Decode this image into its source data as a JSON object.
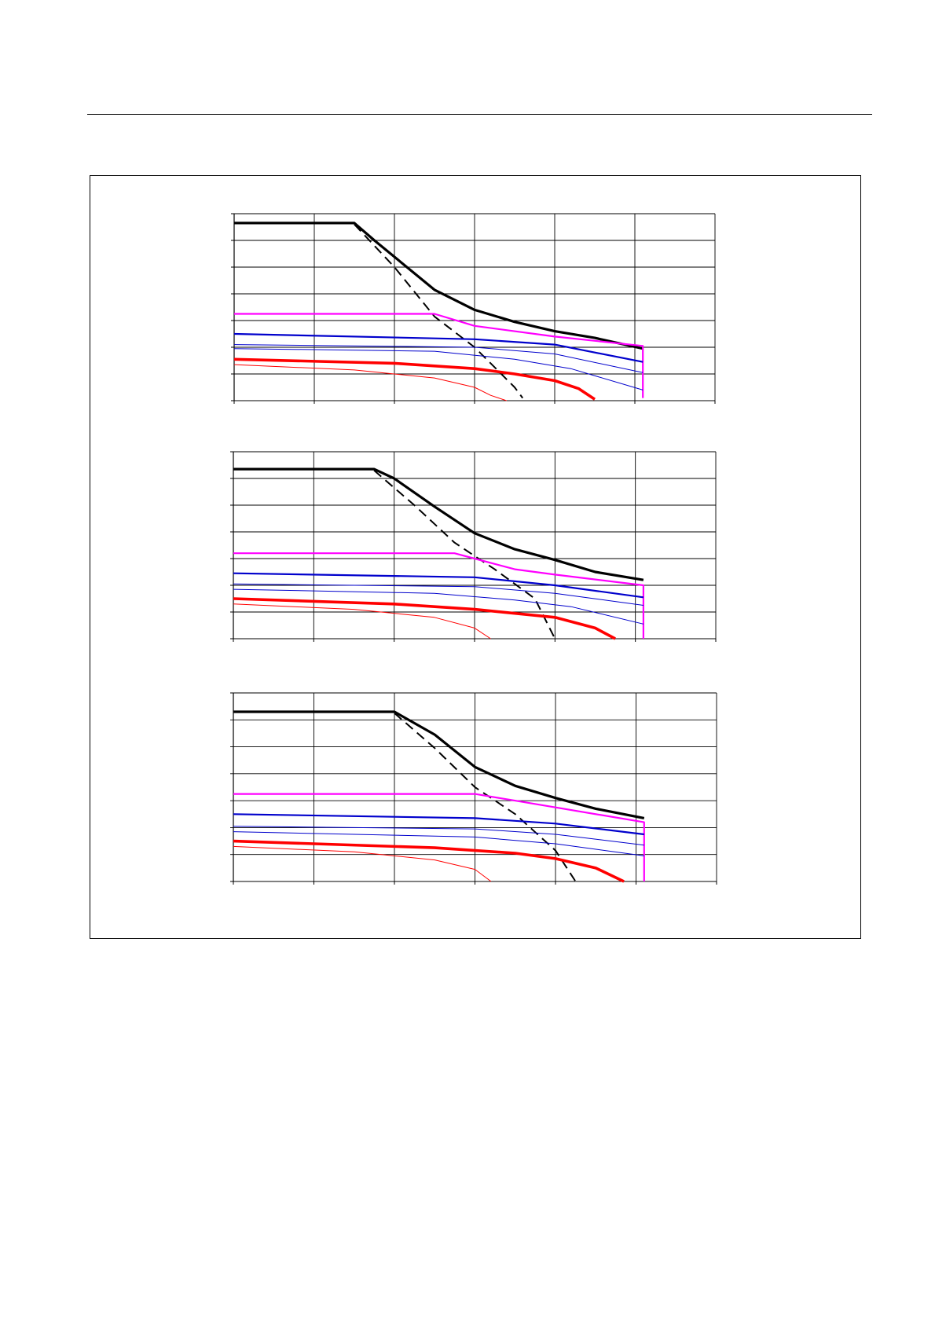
{
  "page": {
    "header_rule": true
  },
  "chart_data": [
    {
      "type": "line",
      "title": "",
      "xlabel": "",
      "ylabel": "",
      "xlim": [
        0,
        6
      ],
      "ylim": [
        0,
        7
      ],
      "x_divisions": 6,
      "y_divisions": 7,
      "grid": true,
      "series": [
        {
          "style": "heavy-black",
          "color": "#000000",
          "points": [
            [
              0,
              6.65
            ],
            [
              1.5,
              6.65
            ],
            [
              1.75,
              6.0
            ],
            [
              2.5,
              4.15
            ],
            [
              3.0,
              3.4
            ],
            [
              3.5,
              2.95
            ],
            [
              4.0,
              2.6
            ],
            [
              4.5,
              2.35
            ],
            [
              5.1,
              1.95
            ]
          ]
        },
        {
          "style": "dashed-black",
          "color": "#000000",
          "points": [
            [
              1.5,
              6.6
            ],
            [
              2.0,
              5.0
            ],
            [
              2.5,
              3.15
            ],
            [
              3.0,
              2.0
            ],
            [
              3.5,
              0.5
            ],
            [
              3.6,
              0.1
            ]
          ]
        },
        {
          "style": "magenta",
          "color": "#ff00ff",
          "points": [
            [
              0,
              3.25
            ],
            [
              2.5,
              3.25
            ],
            [
              3.0,
              2.8
            ],
            [
              4.0,
              2.4
            ],
            [
              5.1,
              2.05
            ],
            [
              5.1,
              0.1
            ]
          ]
        },
        {
          "style": "blue",
          "color": "#0000cc",
          "points": [
            [
              0,
              2.5
            ],
            [
              3.0,
              2.3
            ],
            [
              4.0,
              2.1
            ],
            [
              5.1,
              1.45
            ]
          ]
        },
        {
          "style": "blue-thin",
          "color": "#0000cc",
          "points": [
            [
              0,
              2.1
            ],
            [
              3.0,
              2.0
            ],
            [
              4.0,
              1.75
            ],
            [
              5.1,
              1.05
            ]
          ]
        },
        {
          "style": "blue-thin",
          "color": "#0000cc",
          "points": [
            [
              0,
              1.95
            ],
            [
              2.5,
              1.85
            ],
            [
              3.5,
              1.55
            ],
            [
              4.2,
              1.2
            ],
            [
              5.1,
              0.4
            ]
          ]
        },
        {
          "style": "heavy-red",
          "color": "#ff0000",
          "points": [
            [
              0,
              1.55
            ],
            [
              2.0,
              1.4
            ],
            [
              3.0,
              1.2
            ],
            [
              3.5,
              1.0
            ],
            [
              4.0,
              0.75
            ],
            [
              4.3,
              0.45
            ],
            [
              4.5,
              0.05
            ]
          ]
        },
        {
          "style": "red-thin",
          "color": "#ff0000",
          "points": [
            [
              0,
              1.35
            ],
            [
              1.5,
              1.15
            ],
            [
              2.5,
              0.85
            ],
            [
              3.0,
              0.5
            ],
            [
              3.2,
              0.2
            ],
            [
              3.4,
              0.0
            ]
          ]
        }
      ]
    },
    {
      "type": "line",
      "title": "",
      "xlabel": "",
      "ylabel": "",
      "xlim": [
        0,
        6
      ],
      "ylim": [
        0,
        7
      ],
      "x_divisions": 6,
      "y_divisions": 7,
      "grid": true,
      "series": [
        {
          "style": "heavy-black",
          "color": "#000000",
          "points": [
            [
              0,
              6.35
            ],
            [
              1.75,
              6.35
            ],
            [
              2.0,
              6.0
            ],
            [
              2.5,
              4.95
            ],
            [
              3.0,
              3.95
            ],
            [
              3.5,
              3.35
            ],
            [
              4.0,
              2.95
            ],
            [
              4.5,
              2.5
            ],
            [
              5.1,
              2.2
            ]
          ]
        },
        {
          "style": "dashed-black",
          "color": "#000000",
          "points": [
            [
              1.75,
              6.3
            ],
            [
              2.25,
              5.0
            ],
            [
              2.75,
              3.6
            ],
            [
              3.25,
              2.6
            ],
            [
              3.75,
              1.5
            ],
            [
              4.0,
              0.0
            ]
          ]
        },
        {
          "style": "magenta",
          "color": "#ff00ff",
          "points": [
            [
              0,
              3.2
            ],
            [
              2.75,
              3.2
            ],
            [
              3.0,
              3.0
            ],
            [
              3.5,
              2.6
            ],
            [
              4.0,
              2.4
            ],
            [
              5.1,
              2.0
            ],
            [
              5.1,
              0.0
            ]
          ]
        },
        {
          "style": "blue",
          "color": "#0000cc",
          "points": [
            [
              0,
              2.45
            ],
            [
              3.0,
              2.3
            ],
            [
              4.0,
              2.0
            ],
            [
              5.1,
              1.55
            ]
          ]
        },
        {
          "style": "blue-thin",
          "color": "#0000cc",
          "points": [
            [
              0,
              2.05
            ],
            [
              3.0,
              1.95
            ],
            [
              4.0,
              1.7
            ],
            [
              5.1,
              1.25
            ]
          ]
        },
        {
          "style": "blue-thin",
          "color": "#0000cc",
          "points": [
            [
              0,
              1.85
            ],
            [
              2.5,
              1.7
            ],
            [
              3.5,
              1.45
            ],
            [
              4.2,
              1.2
            ],
            [
              5.1,
              0.55
            ]
          ]
        },
        {
          "style": "heavy-red",
          "color": "#ff0000",
          "points": [
            [
              0,
              1.5
            ],
            [
              2.0,
              1.3
            ],
            [
              3.0,
              1.1
            ],
            [
              4.0,
              0.8
            ],
            [
              4.5,
              0.4
            ],
            [
              4.75,
              0.0
            ]
          ]
        },
        {
          "style": "red-thin",
          "color": "#ff0000",
          "points": [
            [
              0,
              1.3
            ],
            [
              1.5,
              1.1
            ],
            [
              2.5,
              0.8
            ],
            [
              3.0,
              0.4
            ],
            [
              3.2,
              0.0
            ]
          ]
        }
      ]
    },
    {
      "type": "line",
      "title": "",
      "xlabel": "",
      "ylabel": "",
      "xlim": [
        0,
        6
      ],
      "ylim": [
        0,
        7
      ],
      "x_divisions": 6,
      "y_divisions": 7,
      "grid": true,
      "series": [
        {
          "style": "heavy-black",
          "color": "#000000",
          "points": [
            [
              0,
              6.3
            ],
            [
              2.0,
              6.3
            ],
            [
              2.5,
              5.45
            ],
            [
              3.0,
              4.25
            ],
            [
              3.5,
              3.55
            ],
            [
              4.0,
              3.1
            ],
            [
              4.5,
              2.7
            ],
            [
              5.1,
              2.35
            ]
          ]
        },
        {
          "style": "dashed-black",
          "color": "#000000",
          "points": [
            [
              2.0,
              6.25
            ],
            [
              2.5,
              4.95
            ],
            [
              3.0,
              3.5
            ],
            [
              3.5,
              2.5
            ],
            [
              4.0,
              1.15
            ],
            [
              4.25,
              0.0
            ]
          ]
        },
        {
          "style": "magenta",
          "color": "#ff00ff",
          "points": [
            [
              0,
              3.25
            ],
            [
              3.0,
              3.25
            ],
            [
              4.0,
              2.75
            ],
            [
              5.1,
              2.2
            ],
            [
              5.1,
              0.0
            ]
          ]
        },
        {
          "style": "blue",
          "color": "#0000cc",
          "points": [
            [
              0,
              2.5
            ],
            [
              3.0,
              2.35
            ],
            [
              4.0,
              2.15
            ],
            [
              5.1,
              1.75
            ]
          ]
        },
        {
          "style": "blue-thin",
          "color": "#0000cc",
          "points": [
            [
              0,
              2.05
            ],
            [
              3.0,
              1.95
            ],
            [
              4.0,
              1.75
            ],
            [
              5.1,
              1.35
            ]
          ]
        },
        {
          "style": "blue-thin",
          "color": "#0000cc",
          "points": [
            [
              0,
              1.85
            ],
            [
              3.0,
              1.65
            ],
            [
              4.0,
              1.4
            ],
            [
              5.1,
              0.95
            ]
          ]
        },
        {
          "style": "heavy-red",
          "color": "#ff0000",
          "points": [
            [
              0,
              1.5
            ],
            [
              2.5,
              1.25
            ],
            [
              3.5,
              1.05
            ],
            [
              4.0,
              0.85
            ],
            [
              4.5,
              0.5
            ],
            [
              4.85,
              0.0
            ]
          ]
        },
        {
          "style": "red-thin",
          "color": "#ff0000",
          "points": [
            [
              0,
              1.3
            ],
            [
              1.5,
              1.1
            ],
            [
              2.5,
              0.8
            ],
            [
              3.0,
              0.45
            ],
            [
              3.2,
              0.0
            ]
          ]
        }
      ]
    }
  ]
}
